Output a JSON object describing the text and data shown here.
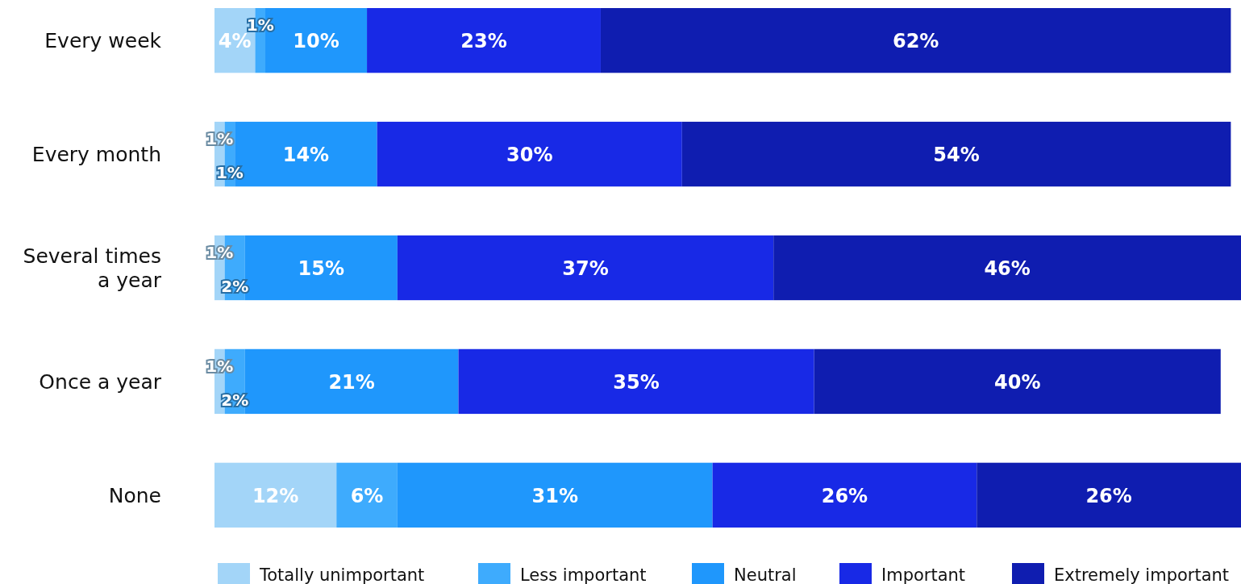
{
  "chart_data": {
    "type": "bar",
    "orientation": "horizontal",
    "stacked": true,
    "categories": [
      "Every week",
      "Every month",
      "Several times\na year",
      "Once a year",
      "None"
    ],
    "series": [
      {
        "name": "Totally unimportant",
        "color": "#a3d5f8",
        "values": [
          4,
          1,
          1,
          1,
          12
        ],
        "value_labels": [
          "4%",
          "1%",
          "1%",
          "1%",
          "12%"
        ]
      },
      {
        "name": "Less important",
        "color": "#3eabfd",
        "values": [
          1,
          1,
          2,
          2,
          6
        ],
        "value_labels": [
          "1%",
          "1%",
          "2%",
          "2%",
          "6%"
        ]
      },
      {
        "name": "Neutral",
        "color": "#1f97fc",
        "values": [
          10,
          14,
          15,
          21,
          31
        ],
        "value_labels": [
          "10%",
          "14%",
          "15%",
          "21%",
          "31%"
        ]
      },
      {
        "name": "Important",
        "color": "#1829e6",
        "values": [
          23,
          30,
          37,
          35,
          26
        ],
        "value_labels": [
          "23%",
          "30%",
          "37%",
          "35%",
          "26%"
        ]
      },
      {
        "name": "Extremely important",
        "color": "#0f1db0",
        "values": [
          62,
          54,
          46,
          40,
          26
        ],
        "value_labels": [
          "62%",
          "54%",
          "46%",
          "40%",
          "26%"
        ]
      }
    ],
    "legend": "bottom"
  }
}
